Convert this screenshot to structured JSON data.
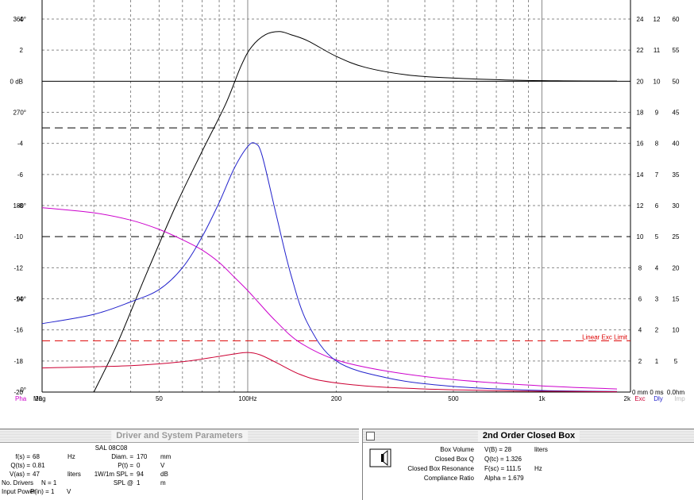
{
  "colors": {
    "magnitude": "#000000",
    "phase": "#cc00cc",
    "excursion": "#cc0033",
    "delay": "#2222cc",
    "limit": "#dd0000",
    "grid": "#8a8a8a"
  },
  "chart_data": {
    "type": "line",
    "xscale": "log",
    "xlim": [
      20,
      2000
    ],
    "x_ticks": [
      "20",
      "50",
      "100Hz",
      "200",
      "500",
      "1k",
      "2k"
    ],
    "grid": true,
    "left_axis_magnitude": {
      "ylim": [
        -20,
        4
      ],
      "ticks": [
        "4",
        "2",
        "0 dB",
        "-4",
        "-6",
        "-8",
        "-10",
        "-12",
        "-14",
        "-16",
        "-18",
        "-20"
      ]
    },
    "left_axis_phase": {
      "ticks": [
        "360°",
        "270°",
        "180°",
        "90°",
        "0°"
      ]
    },
    "right_axes": [
      {
        "label": "0 mm",
        "ticks": [
          "24",
          "22",
          "20",
          "18",
          "16",
          "14",
          "12",
          "10",
          "8",
          "6",
          "4",
          "2",
          "0 mm"
        ]
      },
      {
        "label": "0 ms",
        "ticks": [
          "12",
          "11",
          "10",
          "9",
          "8",
          "7",
          "6",
          "5",
          "4",
          "3",
          "2",
          "1",
          "0 ms"
        ]
      },
      {
        "label": "0.0hm",
        "ticks": [
          "60",
          "55",
          "50",
          "45",
          "40",
          "35",
          "30",
          "25",
          "20",
          "15",
          "10",
          "5",
          "0.0hm"
        ]
      }
    ],
    "bottom_left_labels": [
      "Pha",
      "Mag"
    ],
    "bottom_right_labels": [
      "Exc",
      "Dly",
      "Imp"
    ],
    "annotation": "Linear Exc Limit",
    "reference_lines": [
      {
        "axis": "magnitude_db",
        "value": 0,
        "style": "solid"
      },
      {
        "axis": "magnitude_db",
        "value": -3,
        "style": "dashed"
      },
      {
        "axis": "magnitude_db",
        "value": -10,
        "style": "dashed"
      },
      {
        "axis": "excursion_mm",
        "value": 3.3,
        "style": "dashed",
        "label": "Linear Exc Limit"
      }
    ],
    "series": [
      {
        "key": "magnitude",
        "axis": "magnitude_db",
        "x": [
          30,
          36,
          45,
          57,
          70,
          84,
          95,
          103,
          115,
          128,
          140,
          160,
          200,
          250,
          350,
          500,
          800,
          1200,
          1800
        ],
        "y": [
          -20,
          -16.9,
          -12.5,
          -8,
          -4.5,
          -1.5,
          1.0,
          2.2,
          3.0,
          3.2,
          3.0,
          2.6,
          1.6,
          0.9,
          0.4,
          0.2,
          0.07,
          0.02,
          0.01
        ]
      },
      {
        "key": "phase",
        "axis": "phase_deg",
        "x": [
          20,
          30,
          40,
          50,
          60,
          70,
          80,
          90,
          100,
          110,
          125,
          150,
          200,
          300,
          500,
          1000,
          1800
        ],
        "y": [
          178,
          173,
          166,
          157,
          147,
          137,
          125,
          111,
          98,
          85,
          68,
          48,
          31,
          20,
          12,
          6,
          3
        ]
      },
      {
        "key": "delay",
        "axis": "delay_ms",
        "x": [
          20,
          30,
          40,
          50,
          60,
          70,
          80,
          90,
          100,
          106,
          112,
          125,
          140,
          160,
          200,
          300,
          500,
          1000,
          1800
        ],
        "y": [
          2.2,
          2.5,
          2.9,
          3.3,
          4.0,
          5.0,
          6.1,
          7.2,
          7.9,
          8.0,
          7.6,
          5.7,
          3.8,
          2.2,
          1.0,
          0.45,
          0.18,
          0.05,
          0.02
        ]
      },
      {
        "key": "excursion",
        "axis": "excursion_mm",
        "x": [
          20,
          40,
          60,
          80,
          90,
          100,
          110,
          125,
          150,
          180,
          250,
          400,
          700,
          1000,
          1800
        ],
        "y": [
          1.55,
          1.7,
          1.95,
          2.3,
          2.45,
          2.55,
          2.4,
          1.9,
          1.15,
          0.72,
          0.4,
          0.2,
          0.09,
          0.05,
          0.02
        ]
      }
    ]
  },
  "left_panel": {
    "title": "Driver and System Parameters",
    "model": "SAL 08C08",
    "rows": [
      {
        "label": "f(s) =",
        "value": "68",
        "unit": "Hz",
        "label2": "Diam. =",
        "value2": "170",
        "unit2": "mm"
      },
      {
        "label": "Q(ts) =",
        "value": "0.81",
        "unit": "",
        "label2": "P(t) =",
        "value2": "0",
        "unit2": "V"
      },
      {
        "label": "V(as) =",
        "value": "47",
        "unit": "liters",
        "label2": "1W/1m SPL =",
        "value2": "94",
        "unit2": "dB"
      },
      {
        "label": "No. Drivers",
        "value": "N = 1",
        "unit": "",
        "label2": "SPL @",
        "value2": "1",
        "unit2": "m"
      },
      {
        "label": "Input Power",
        "value": "P(in) = 1",
        "unit": "V",
        "label2": "",
        "value2": "",
        "unit2": ""
      }
    ]
  },
  "right_panel": {
    "title": "2nd Order Closed Box",
    "rows": [
      {
        "label": "Box Volume",
        "value": "V(B) = 28",
        "unit": "liters"
      },
      {
        "label": "Closed Box Q",
        "value": "Q(tc) = 1.326",
        "unit": ""
      },
      {
        "label": "Closed Box Resonance",
        "value": "F(sc) = 111.5",
        "unit": "Hz"
      },
      {
        "label": "Compliance Ratio",
        "value": "Alpha = 1.679",
        "unit": ""
      }
    ]
  }
}
